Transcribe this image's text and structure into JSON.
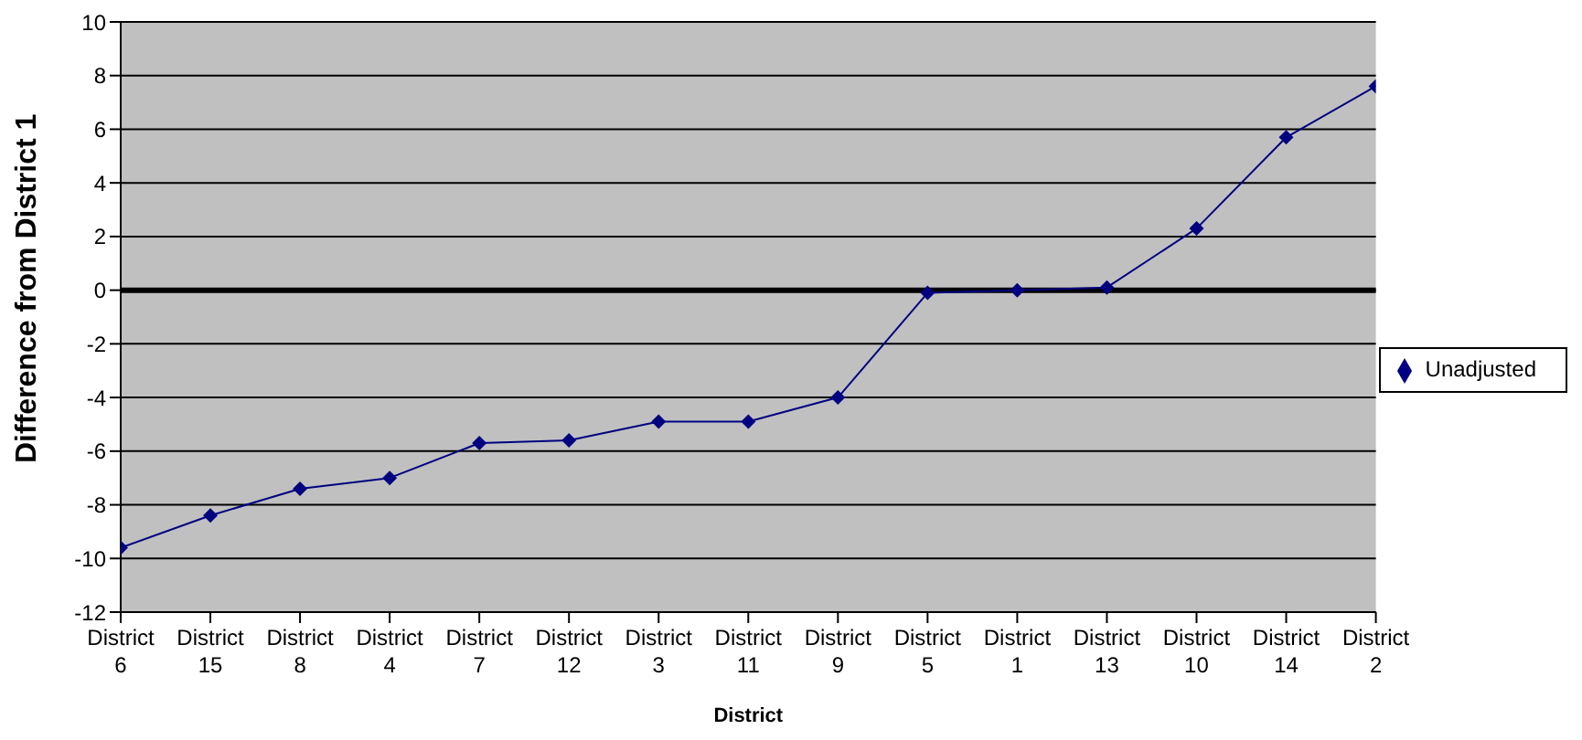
{
  "chart_data": {
    "type": "line",
    "xlabel": "District",
    "ylabel": "Difference from District 1",
    "categories": [
      "District 6",
      "District 15",
      "District 8",
      "District 4",
      "District 7",
      "District 12",
      "District 3",
      "District 11",
      "District 9",
      "District 5",
      "District 1",
      "District 13",
      "District 10",
      "District 14",
      "District 2"
    ],
    "series": [
      {
        "name": "Unadjusted",
        "color": "#000080",
        "values": [
          -9.6,
          -8.4,
          -7.4,
          -7.0,
          -5.7,
          -5.6,
          -4.9,
          -4.9,
          -4.0,
          -0.1,
          0,
          0.1,
          2.3,
          5.7,
          7.6
        ]
      }
    ],
    "ylim": [
      -12,
      10
    ],
    "yticks": [
      -12,
      -10,
      -8,
      -6,
      -4,
      -2,
      0,
      2,
      4,
      6,
      8,
      10
    ],
    "grid": "y",
    "legend": "right",
    "marker": "diamond",
    "line_style": "solid",
    "ref_lines": [
      {
        "axis": "y",
        "value": 0,
        "color": "#000000"
      }
    ]
  }
}
